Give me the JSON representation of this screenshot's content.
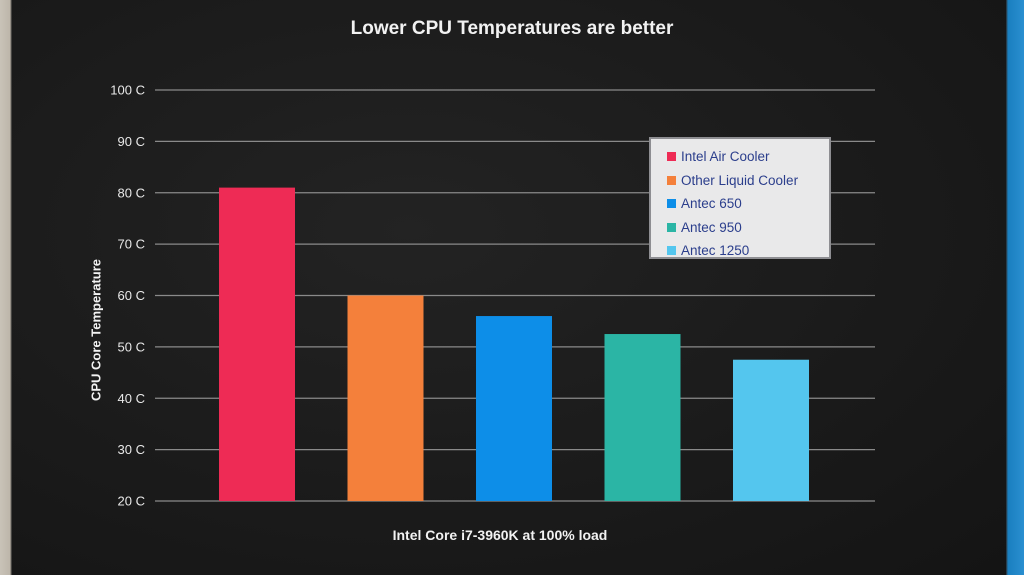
{
  "chart_data": {
    "type": "bar",
    "title": "Lower CPU Temperatures are better",
    "xlabel": "Intel Core i7-3960K at 100% load",
    "ylabel": "CPU Core Temperature",
    "ylim": [
      20,
      100
    ],
    "yticks": [
      "20 C",
      "30 C",
      "40 C",
      "50 C",
      "60 C",
      "70 C",
      "80 C",
      "90 C",
      "100 C"
    ],
    "grid": true,
    "legend_position": "top-right",
    "series": [
      {
        "name": "Intel Air Cooler",
        "value": 81,
        "color": "#ee2b55"
      },
      {
        "name": "Other Liquid Cooler",
        "value": 60,
        "color": "#f4803b"
      },
      {
        "name": "Antec 650",
        "value": 56,
        "color": "#0d8ee8"
      },
      {
        "name": "Antec 950",
        "value": 52.5,
        "color": "#2bb5a5"
      },
      {
        "name": "Antec 1250",
        "value": 47.5,
        "color": "#54c6ee"
      }
    ]
  }
}
